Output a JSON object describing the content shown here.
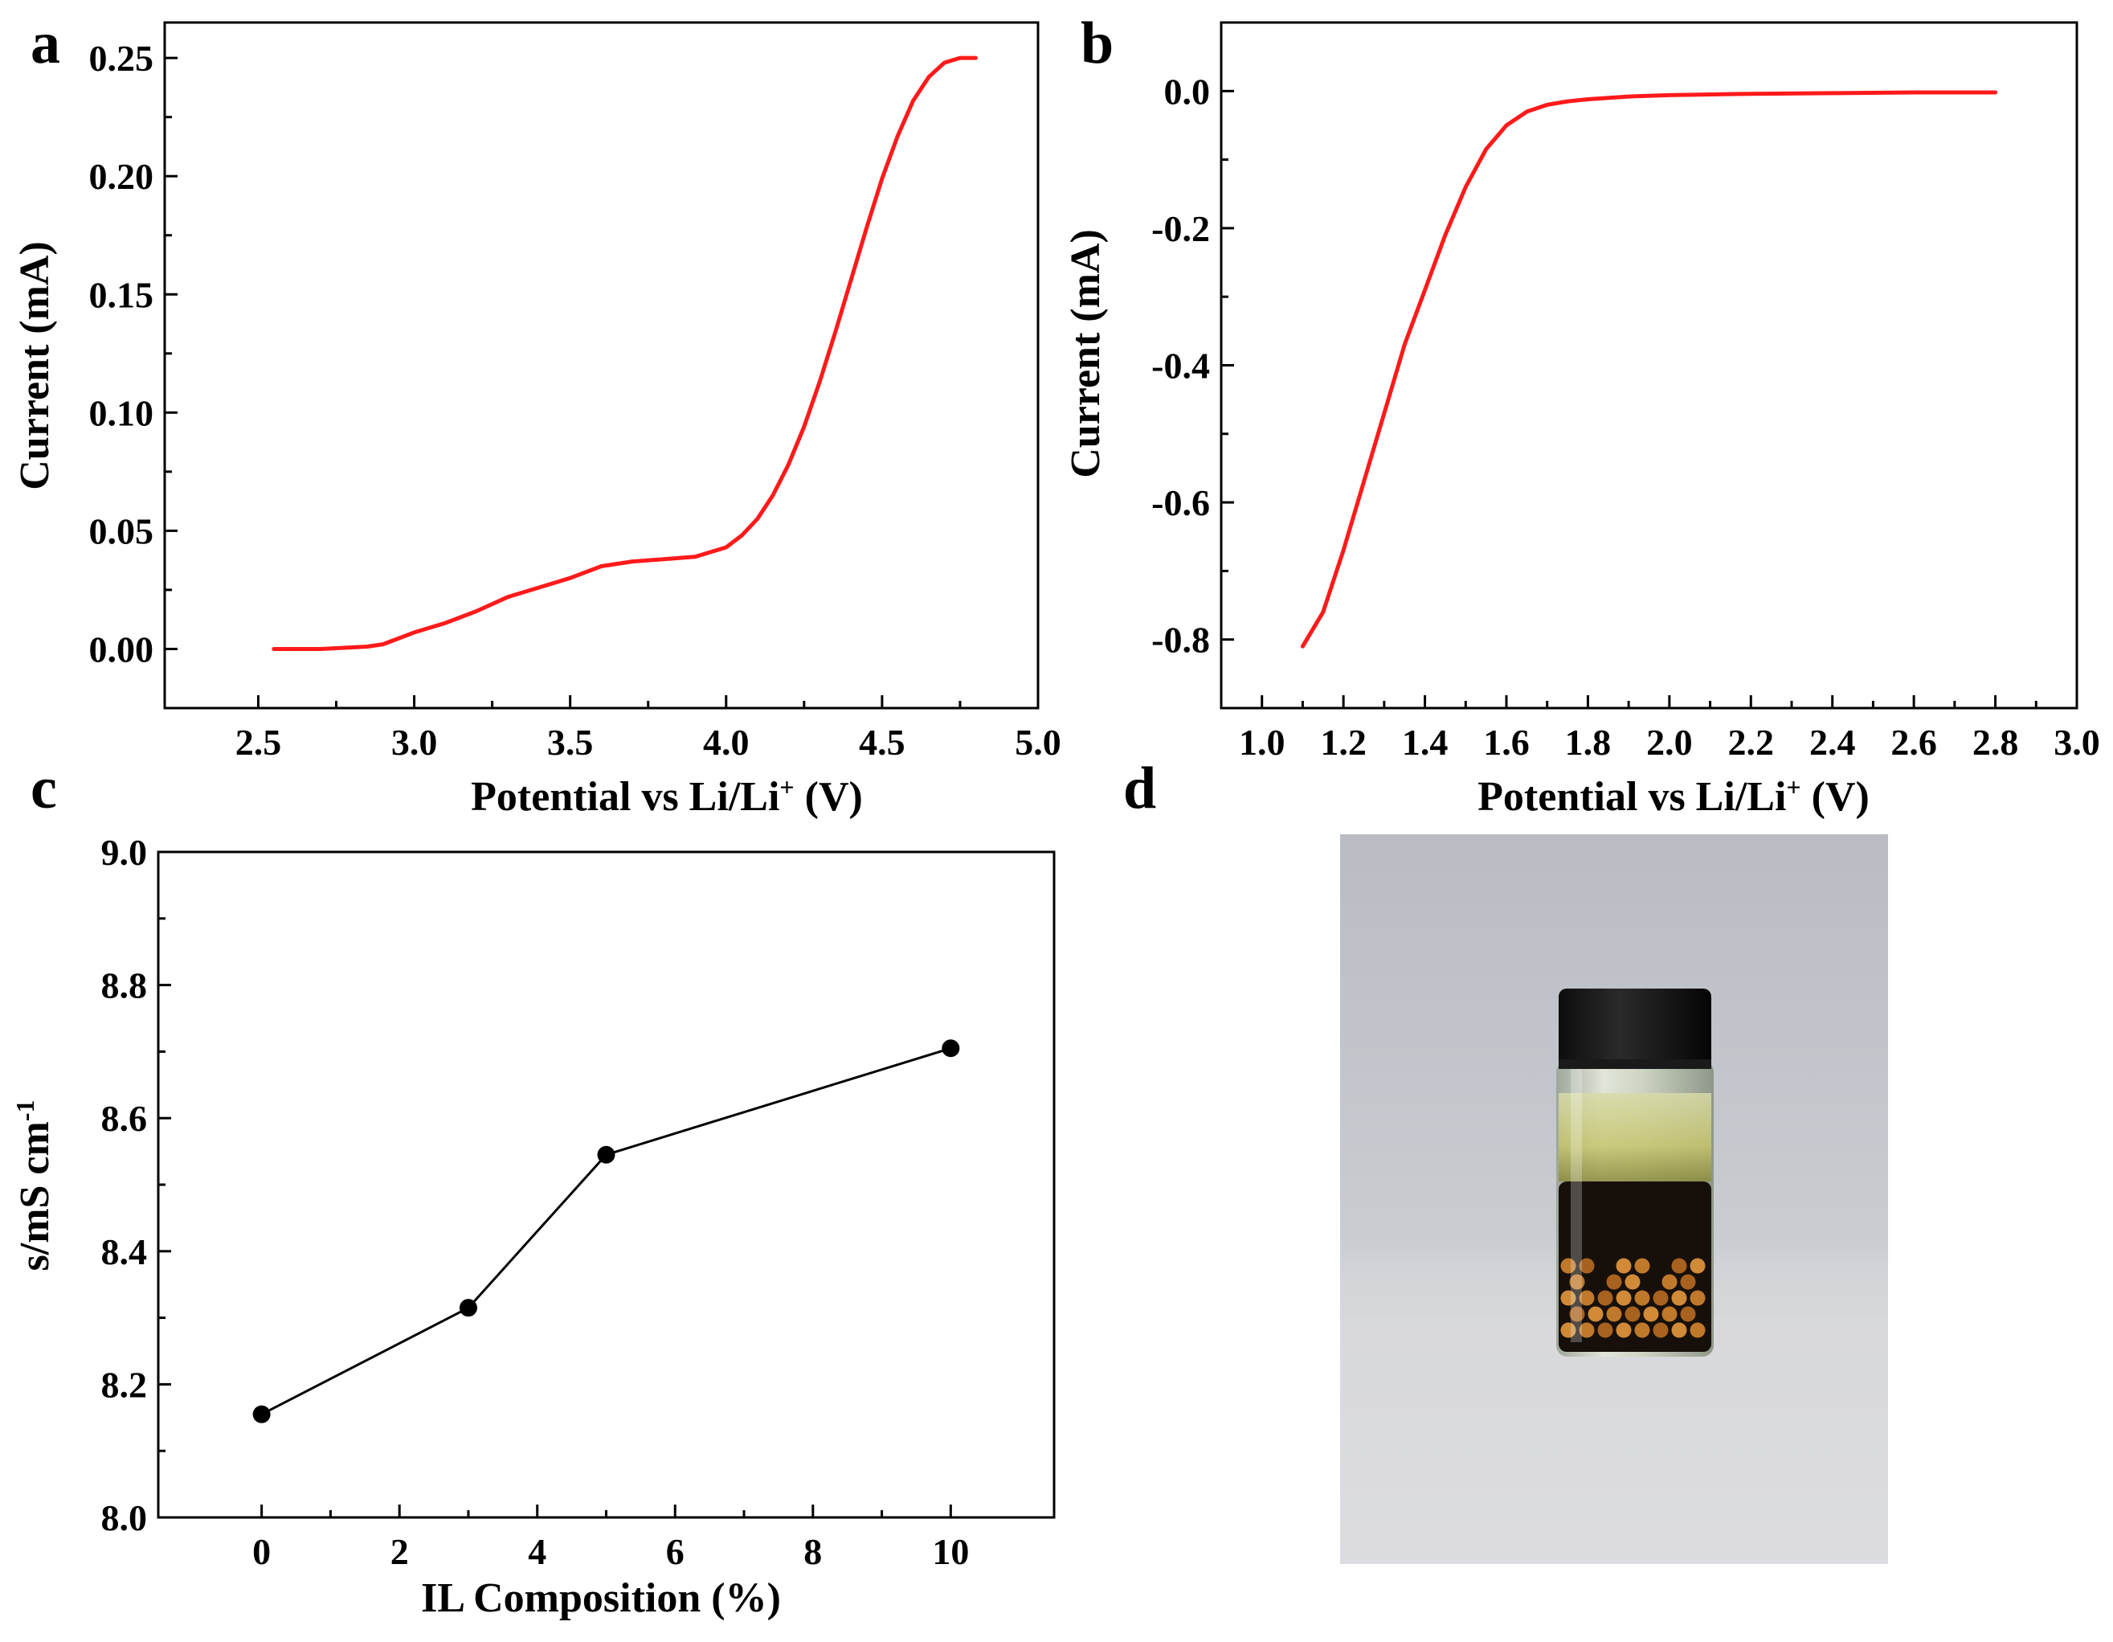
{
  "panels": {
    "a": "a",
    "b": "b",
    "c": "c",
    "d": "d"
  },
  "colors": {
    "curve": "#ff1a1a",
    "line": "#000000"
  },
  "chart_data": [
    {
      "panel": "a",
      "type": "line",
      "xlabel": "Potential vs Li/Li",
      "xlabel_sup": "+",
      "xlabel_suffix": " (V)",
      "ylabel": "Current (mA)",
      "xlim": [
        2.2,
        5.0
      ],
      "ylim": [
        -0.025,
        0.265
      ],
      "xticks": [
        "2.5",
        "3.0",
        "3.5",
        "4.0",
        "4.5",
        "5.0"
      ],
      "yticks": [
        "0.00",
        "0.05",
        "0.10",
        "0.15",
        "0.20",
        "0.25"
      ],
      "x": [
        2.55,
        2.7,
        2.85,
        2.9,
        3.0,
        3.1,
        3.2,
        3.3,
        3.4,
        3.5,
        3.6,
        3.7,
        3.8,
        3.9,
        4.0,
        4.05,
        4.1,
        4.15,
        4.2,
        4.25,
        4.3,
        4.35,
        4.4,
        4.45,
        4.5,
        4.55,
        4.6,
        4.65,
        4.7,
        4.75,
        4.8
      ],
      "y": [
        0.0,
        0.0,
        0.001,
        0.002,
        0.007,
        0.011,
        0.016,
        0.022,
        0.026,
        0.03,
        0.035,
        0.037,
        0.038,
        0.039,
        0.043,
        0.048,
        0.055,
        0.065,
        0.078,
        0.094,
        0.113,
        0.134,
        0.156,
        0.178,
        0.199,
        0.217,
        0.232,
        0.242,
        0.248,
        0.25,
        0.25
      ]
    },
    {
      "panel": "b",
      "type": "line",
      "xlabel": "Potential vs Li/Li",
      "xlabel_sup": "+",
      "xlabel_suffix": " (V)",
      "ylabel": "Current (mA)",
      "xlim": [
        0.9,
        3.0
      ],
      "ylim": [
        -0.9,
        0.1
      ],
      "xticks": [
        "1.0",
        "1.2",
        "1.4",
        "1.6",
        "1.8",
        "2.0",
        "2.2",
        "2.4",
        "2.6",
        "2.8",
        "3.0"
      ],
      "yticks": [
        "-0.8",
        "-0.6",
        "-0.4",
        "-0.2",
        "0.0"
      ],
      "x": [
        1.1,
        1.15,
        1.2,
        1.25,
        1.3,
        1.35,
        1.4,
        1.45,
        1.5,
        1.55,
        1.6,
        1.65,
        1.7,
        1.75,
        1.8,
        1.9,
        2.0,
        2.2,
        2.4,
        2.6,
        2.8
      ],
      "y": [
        -0.81,
        -0.76,
        -0.67,
        -0.57,
        -0.47,
        -0.37,
        -0.29,
        -0.21,
        -0.14,
        -0.085,
        -0.05,
        -0.03,
        -0.02,
        -0.015,
        -0.012,
        -0.008,
        -0.006,
        -0.004,
        -0.003,
        -0.002,
        -0.002
      ]
    },
    {
      "panel": "c",
      "type": "line",
      "xlabel": "IL Composition (%)",
      "ylabel": "s/mS cm",
      "ylabel_sup": "-1",
      "xlim": [
        -1.5,
        11.5
      ],
      "ylim": [
        8.0,
        9.0
      ],
      "xticks": [
        "0",
        "2",
        "4",
        "6",
        "8",
        "10"
      ],
      "yticks": [
        "8.0",
        "8.2",
        "8.4",
        "8.6",
        "8.8",
        "9.0"
      ],
      "x": [
        0,
        3,
        5,
        10
      ],
      "y": [
        8.155,
        8.315,
        8.545,
        8.705
      ]
    }
  ]
}
